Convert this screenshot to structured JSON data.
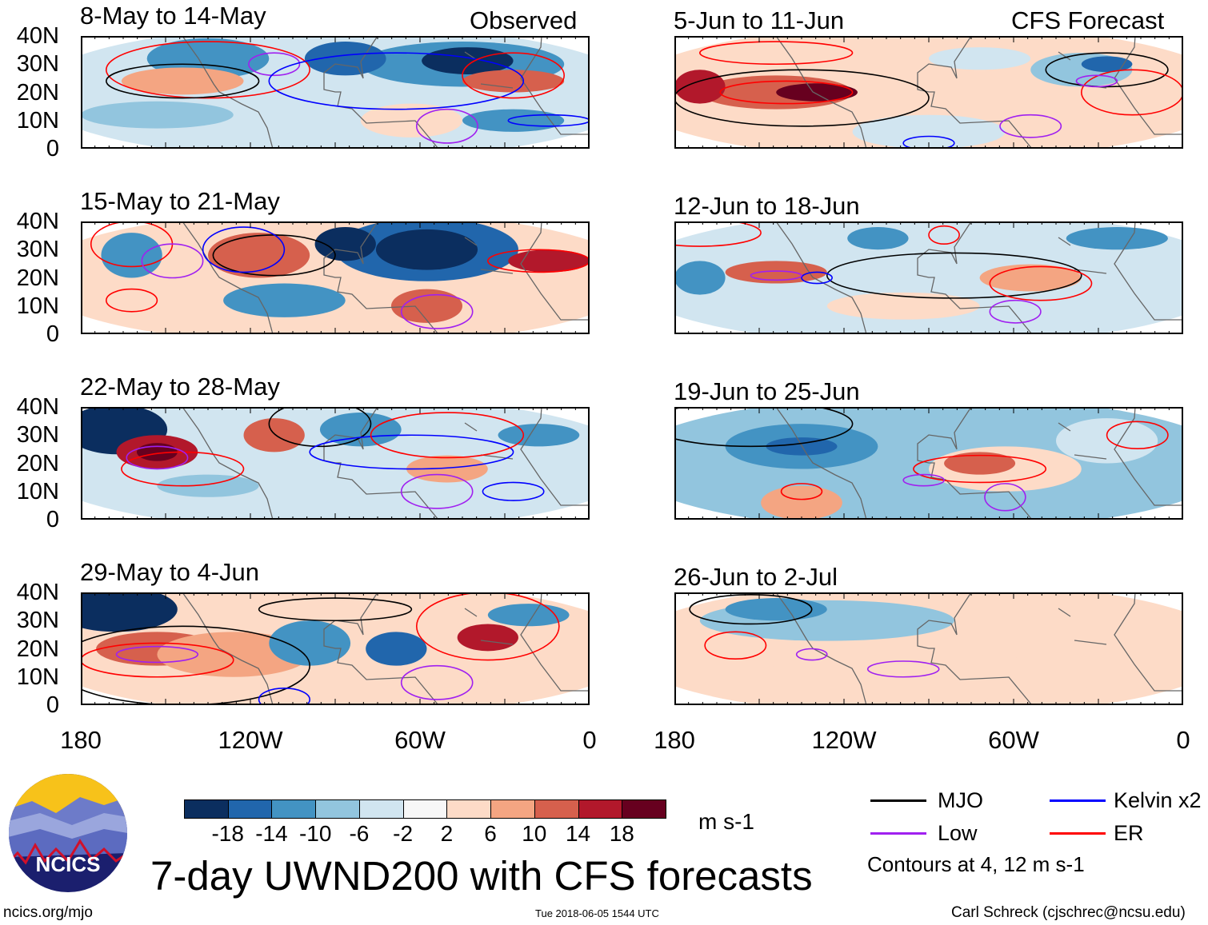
{
  "figure_title": "7-day UWND200 with CFS forecasts",
  "column_labels": {
    "left": "Observed",
    "right": "CFS Forecast"
  },
  "panels": [
    {
      "title": "8-May to 14-May",
      "column": "observed"
    },
    {
      "title": "15-May to 21-May",
      "column": "observed"
    },
    {
      "title": "22-May to 28-May",
      "column": "observed"
    },
    {
      "title": "29-May to 4-Jun",
      "column": "observed"
    },
    {
      "title": "5-Jun to 11-Jun",
      "column": "forecast"
    },
    {
      "title": "12-Jun to 18-Jun",
      "column": "forecast"
    },
    {
      "title": "19-Jun to 25-Jun",
      "column": "forecast"
    },
    {
      "title": "26-Jun to 2-Jul",
      "column": "forecast"
    }
  ],
  "lat_labels": [
    "40N",
    "30N",
    "20N",
    "10N",
    "0"
  ],
  "lon_labels": [
    "180",
    "120W",
    "60W",
    "0"
  ],
  "colorbar": {
    "units": "m s-1",
    "tick_labels": [
      "-18",
      "-14",
      "-10",
      "-6",
      "-2",
      "2",
      "6",
      "10",
      "14",
      "18"
    ],
    "colors": [
      "#0b2e5f",
      "#2166ac",
      "#4393c3",
      "#92c5de",
      "#d1e5f0",
      "#f7f7f7",
      "#fddbc7",
      "#f4a582",
      "#d6604d",
      "#b2182b",
      "#67001f"
    ]
  },
  "legend": {
    "items": [
      {
        "label": "MJO",
        "color": "#000000"
      },
      {
        "label": "Kelvin x2",
        "color": "#0000ff"
      },
      {
        "label": "Low",
        "color": "#a020f0"
      },
      {
        "label": "ER",
        "color": "#ff0000"
      }
    ],
    "note": "Contours at 4, 12 m s-1"
  },
  "logo_text": "NCICS",
  "footer": {
    "left": "ncics.org/mjo",
    "center": "Tue 2018-06-05 1544 UTC",
    "right": "Carl Schreck (cjschrec@ncsu.edu)"
  }
}
